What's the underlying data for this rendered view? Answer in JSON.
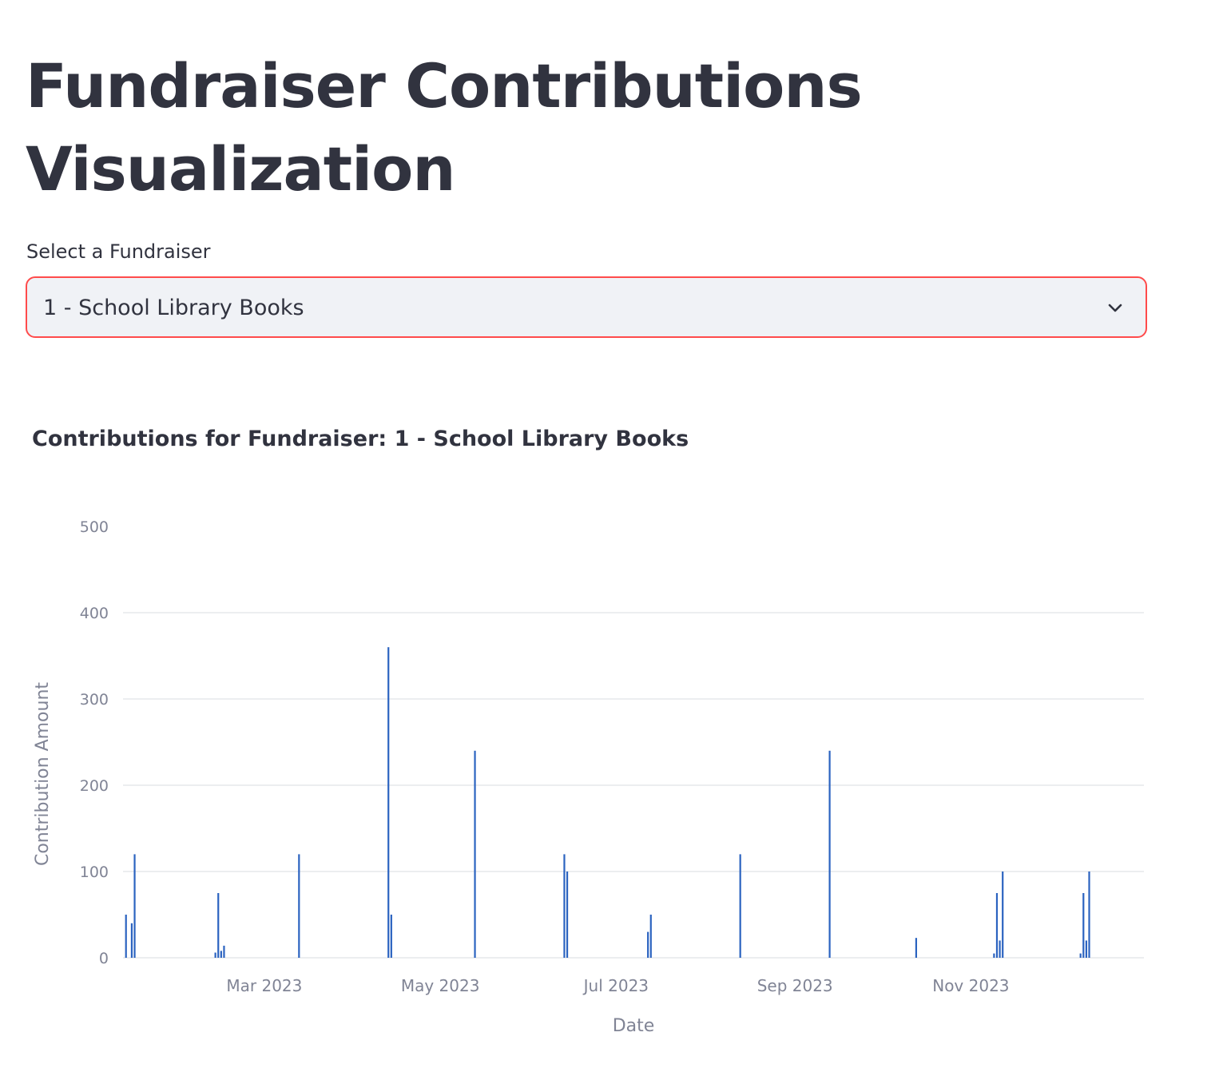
{
  "header": {
    "title": "Fundraiser Contributions Visualization"
  },
  "selector": {
    "label": "Select a Fundraiser",
    "selected": "1 - School Library Books",
    "icon": "chevron-down-icon"
  },
  "colors": {
    "accent": "#ff4b4b",
    "bar": "#2b63c0",
    "grid": "#e6e8ec",
    "text": "#31333f",
    "axis_text": "#808495"
  },
  "chart_data": {
    "type": "bar",
    "title": "Contributions for Fundraiser: 1 - School Library Books",
    "xlabel": "Date",
    "ylabel": "Contribution Amount",
    "ylim": [
      0,
      500
    ],
    "yticks": [
      0,
      100,
      200,
      300,
      400,
      500
    ],
    "xlim": [
      "2023-01-11",
      "2023-12-31"
    ],
    "xticks": [
      {
        "date": "2023-03-01",
        "label": "Mar 2023"
      },
      {
        "date": "2023-05-01",
        "label": "May 2023"
      },
      {
        "date": "2023-07-01",
        "label": "Jul 2023"
      },
      {
        "date": "2023-09-01",
        "label": "Sep 2023"
      },
      {
        "date": "2023-11-01",
        "label": "Nov 2023"
      }
    ],
    "grid": true,
    "series": [
      {
        "points": [
          {
            "x": "2023-01-12",
            "y": 50
          },
          {
            "x": "2023-01-14",
            "y": 40
          },
          {
            "x": "2023-01-15",
            "y": 120
          },
          {
            "x": "2023-02-12",
            "y": 6
          },
          {
            "x": "2023-02-13",
            "y": 75
          },
          {
            "x": "2023-02-14",
            "y": 8
          },
          {
            "x": "2023-02-15",
            "y": 14
          },
          {
            "x": "2023-03-13",
            "y": 120
          },
          {
            "x": "2023-04-13",
            "y": 360
          },
          {
            "x": "2023-04-14",
            "y": 50
          },
          {
            "x": "2023-05-13",
            "y": 240
          },
          {
            "x": "2023-06-13",
            "y": 120
          },
          {
            "x": "2023-06-14",
            "y": 100
          },
          {
            "x": "2023-07-12",
            "y": 30
          },
          {
            "x": "2023-07-13",
            "y": 50
          },
          {
            "x": "2023-08-13",
            "y": 120
          },
          {
            "x": "2023-09-13",
            "y": 240
          },
          {
            "x": "2023-10-13",
            "y": 23
          },
          {
            "x": "2023-11-09",
            "y": 5
          },
          {
            "x": "2023-11-10",
            "y": 75
          },
          {
            "x": "2023-11-11",
            "y": 20
          },
          {
            "x": "2023-11-12",
            "y": 100
          },
          {
            "x": "2023-12-09",
            "y": 5
          },
          {
            "x": "2023-12-10",
            "y": 75
          },
          {
            "x": "2023-12-11",
            "y": 20
          },
          {
            "x": "2023-12-12",
            "y": 100
          }
        ]
      }
    ]
  }
}
